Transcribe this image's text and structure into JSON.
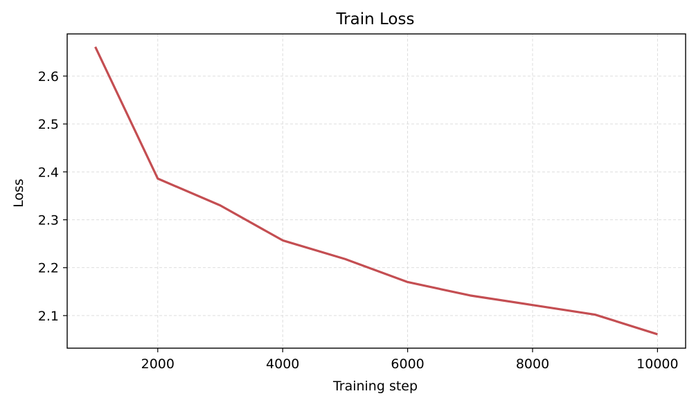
{
  "chart_data": {
    "type": "line",
    "title": "Train Loss",
    "xlabel": "Training step",
    "ylabel": "Loss",
    "xlim": [
      550,
      10450
    ],
    "ylim": [
      2.032,
      2.688
    ],
    "x_ticks": [
      2000,
      4000,
      6000,
      8000,
      10000
    ],
    "x_tick_labels": [
      "2000",
      "4000",
      "6000",
      "8000",
      "10000"
    ],
    "y_ticks": [
      2.1,
      2.2,
      2.3,
      2.4,
      2.5,
      2.6
    ],
    "y_tick_labels": [
      "2.1",
      "2.2",
      "2.3",
      "2.4",
      "2.5",
      "2.6"
    ],
    "grid": true,
    "series": [
      {
        "color": "#c44e52",
        "x": [
          1000,
          2000,
          3000,
          4000,
          5000,
          6000,
          7000,
          8000,
          9000,
          10000
        ],
        "y": [
          2.661,
          2.386,
          2.33,
          2.257,
          2.218,
          2.17,
          2.142,
          2.122,
          2.102,
          2.061
        ]
      }
    ]
  }
}
